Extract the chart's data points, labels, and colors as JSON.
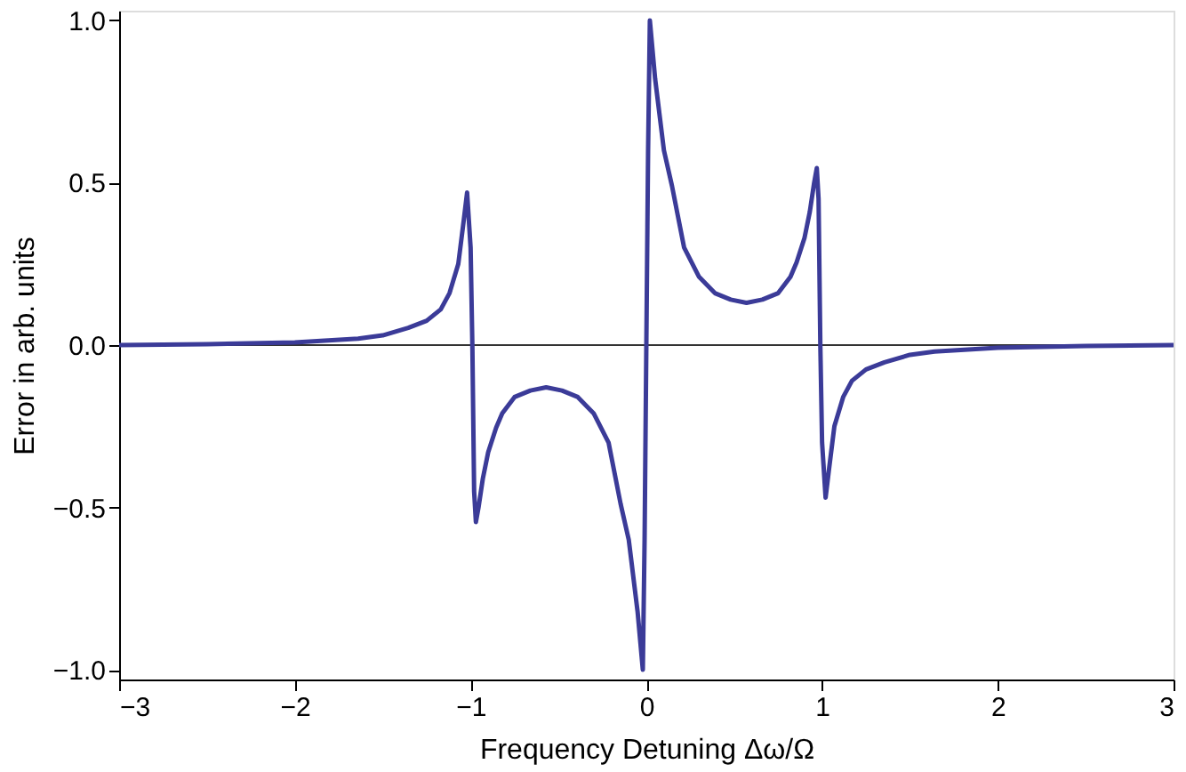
{
  "chart_data": {
    "type": "line",
    "xlabel": "Frequency Detuning Δω/Ω",
    "ylabel": "Error in arb. units",
    "series": [
      {
        "color": "#3b3b98",
        "x": [
          -3.0,
          -2.5,
          -2.0,
          -1.64,
          -1.5,
          -1.355,
          -1.25,
          -1.17,
          -1.12,
          -1.07,
          -1.04,
          -1.02,
          -1.0,
          -0.99,
          -0.98,
          -0.97,
          -0.955,
          -0.93,
          -0.9,
          -0.855,
          -0.82,
          -0.75,
          -0.66,
          -0.57,
          -0.48,
          -0.39,
          -0.3,
          -0.215,
          -0.146,
          -0.1,
          -0.05,
          -0.02,
          -0.01,
          0.0,
          0.01,
          0.02,
          0.05,
          0.1,
          0.146,
          0.215,
          0.3,
          0.39,
          0.48,
          0.57,
          0.66,
          0.75,
          0.82,
          0.855,
          0.9,
          0.93,
          0.955,
          0.97,
          0.98,
          0.99,
          1.0,
          1.02,
          1.04,
          1.07,
          1.12,
          1.17,
          1.25,
          1.355,
          1.5,
          1.64,
          2.0,
          2.5,
          3.0
        ],
        "values": [
          0.0,
          0.003,
          0.008,
          0.02,
          0.03,
          0.053,
          0.075,
          0.11,
          0.16,
          0.25,
          0.38,
          0.47,
          0.3,
          0.0,
          -0.45,
          -0.545,
          -0.5,
          -0.41,
          -0.33,
          -0.255,
          -0.21,
          -0.16,
          -0.14,
          -0.13,
          -0.14,
          -0.16,
          -0.21,
          -0.3,
          -0.49,
          -0.6,
          -0.82,
          -1.0,
          -0.6,
          0.0,
          0.6,
          1.0,
          0.82,
          0.6,
          0.49,
          0.3,
          0.21,
          0.16,
          0.14,
          0.13,
          0.14,
          0.16,
          0.21,
          0.255,
          0.33,
          0.41,
          0.5,
          0.545,
          0.45,
          0.0,
          -0.3,
          -0.47,
          -0.38,
          -0.25,
          -0.16,
          -0.11,
          -0.075,
          -0.053,
          -0.03,
          -0.02,
          -0.008,
          -0.003,
          0.0
        ]
      }
    ],
    "xlim": [
      -3,
      3
    ],
    "xticks": [
      {
        "value": -3,
        "label": "−3"
      },
      {
        "value": -2,
        "label": "−2"
      },
      {
        "value": -1,
        "label": "−1"
      },
      0,
      1,
      2,
      3
    ],
    "ylim": [
      -1.03,
      1.03
    ],
    "yticks": [
      {
        "value": -1,
        "label": "−1.0"
      },
      {
        "value": -0.5,
        "label": "−0.5"
      },
      {
        "value": 0,
        "label": "0.0"
      },
      0.5,
      {
        "value": 1,
        "label": "1.0"
      }
    ],
    "ref_lines": [
      {
        "axis": "y",
        "value": 0,
        "color": "#333333"
      }
    ],
    "grid": false,
    "marker": "none",
    "line_style": "solid"
  }
}
